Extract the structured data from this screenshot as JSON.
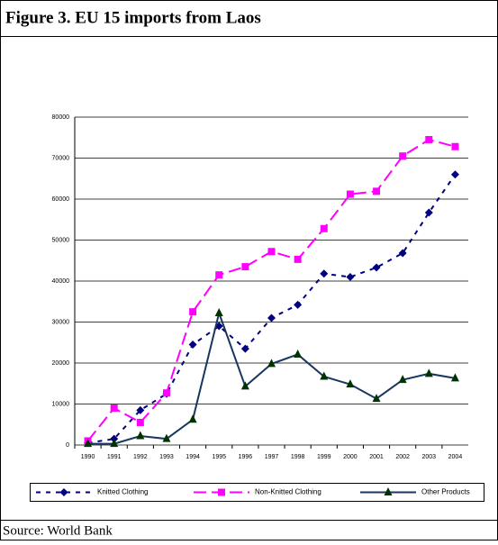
{
  "chart_data": {
    "type": "line",
    "title": "Figure 3. EU 15 imports from Laos",
    "source": "Source: World Bank",
    "categories": [
      "1990",
      "1991",
      "1992",
      "1993",
      "1994",
      "1995",
      "1996",
      "1997",
      "1998",
      "1999",
      "2000",
      "2001",
      "2002",
      "2003",
      "2004"
    ],
    "series": [
      {
        "name": "Knitted Clothing",
        "color": "#000080",
        "marker_color": "#000080",
        "marker": "diamond",
        "dash": "5 6",
        "values": [
          500,
          1500,
          8500,
          12500,
          24500,
          29000,
          23500,
          31000,
          34200,
          41800,
          41000,
          43300,
          46800,
          56700,
          66000
        ]
      },
      {
        "name": "Non-Knitted Clothing",
        "color": "#ff00ff",
        "marker_color": "#ff00ff",
        "marker": "square",
        "dash": "14 6",
        "values": [
          1000,
          9000,
          5500,
          12700,
          32500,
          41500,
          43500,
          47200,
          45300,
          52800,
          61200,
          61900,
          70500,
          74500,
          72800
        ]
      },
      {
        "name": "Other Products",
        "color": "#17375e",
        "marker_color": "#003300",
        "marker": "triangle",
        "dash": "none",
        "values": [
          300,
          300,
          2200,
          1500,
          6200,
          32200,
          14300,
          19800,
          22100,
          16700,
          14800,
          11300,
          15900,
          17400,
          16300
        ]
      }
    ],
    "ylim": [
      0,
      80000
    ],
    "yticks": [
      0,
      10000,
      20000,
      30000,
      40000,
      50000,
      60000,
      70000,
      80000
    ],
    "grid": true,
    "legend": "bottom"
  }
}
